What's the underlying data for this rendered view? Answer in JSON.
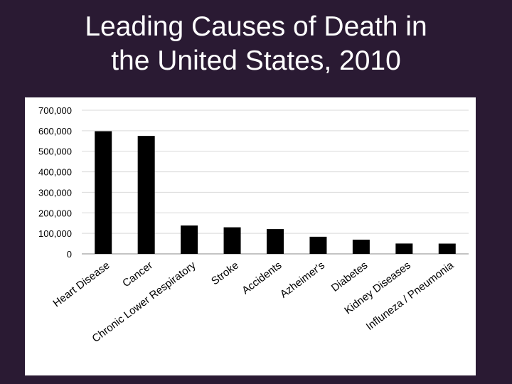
{
  "slide": {
    "title_line1": "Leading Causes of Death in",
    "title_line2": "the United States, 2010",
    "background_color": "#2a1a33"
  },
  "chart_data": {
    "type": "bar",
    "title": "",
    "xlabel": "",
    "ylabel": "",
    "ylim": [
      0,
      700000
    ],
    "yticks": [
      0,
      100000,
      200000,
      300000,
      400000,
      500000,
      600000,
      700000
    ],
    "ytick_labels": [
      "0",
      "100,000",
      "200,000",
      "300,000",
      "400,000",
      "500,000",
      "600,000",
      "700,000"
    ],
    "grid": true,
    "legend": "none",
    "bar_color": "#000000",
    "categories": [
      "Heart Disease",
      "Cancer",
      "Chronic Lower Respiratory",
      "Stroke",
      "Accidents",
      "Azheimer's",
      "Diabetes",
      "Kidney Diseases",
      "Influneza / Pneumonia"
    ],
    "values": [
      597689,
      574743,
      138080,
      129476,
      120859,
      83494,
      69071,
      50476,
      50097
    ]
  }
}
